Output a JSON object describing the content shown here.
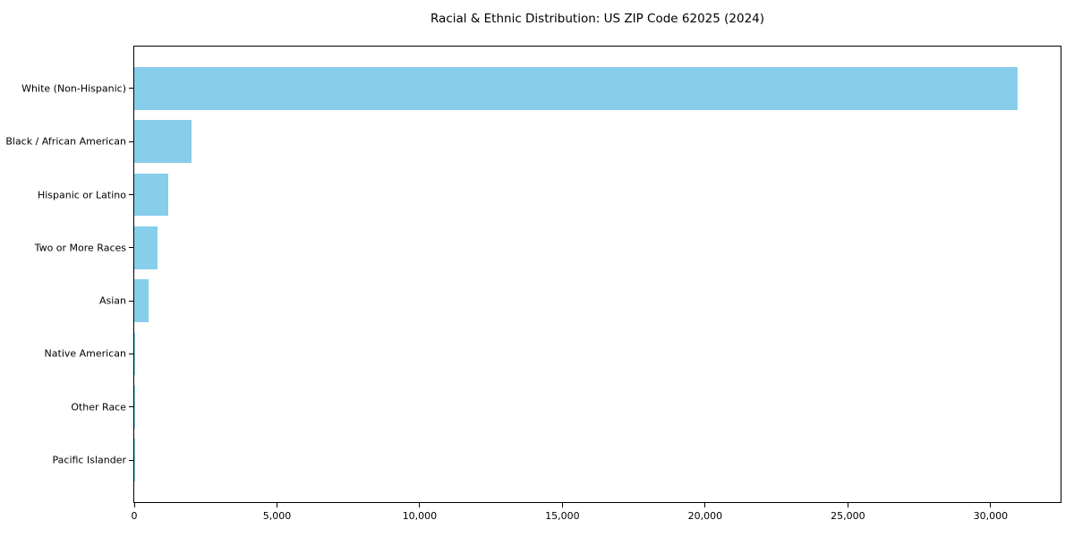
{
  "chart_data": {
    "type": "bar",
    "orientation": "horizontal",
    "title": "Racial & Ethnic Distribution: US ZIP Code 62025 (2024)",
    "categories": [
      "White (Non-Hispanic)",
      "Black / African American",
      "Hispanic or Latino",
      "Two or More Races",
      "Asian",
      "Native American",
      "Other Race",
      "Pacific Islander"
    ],
    "values": [
      30940,
      2000,
      1180,
      830,
      490,
      40,
      15,
      5
    ],
    "bar_color": "#87CEEB",
    "text_color": "#000000",
    "spine_color": "#000000",
    "xlabel": "",
    "ylabel": "",
    "xlim": [
      0,
      32450
    ],
    "xticks": [
      0,
      5000,
      10000,
      15000,
      20000,
      25000,
      30000
    ],
    "xtick_labels": [
      "0",
      "5,000",
      "10,000",
      "15,000",
      "20,000",
      "25,000",
      "30,000"
    ],
    "grid": false,
    "legend": "none",
    "bar_height_fraction": 0.8
  }
}
